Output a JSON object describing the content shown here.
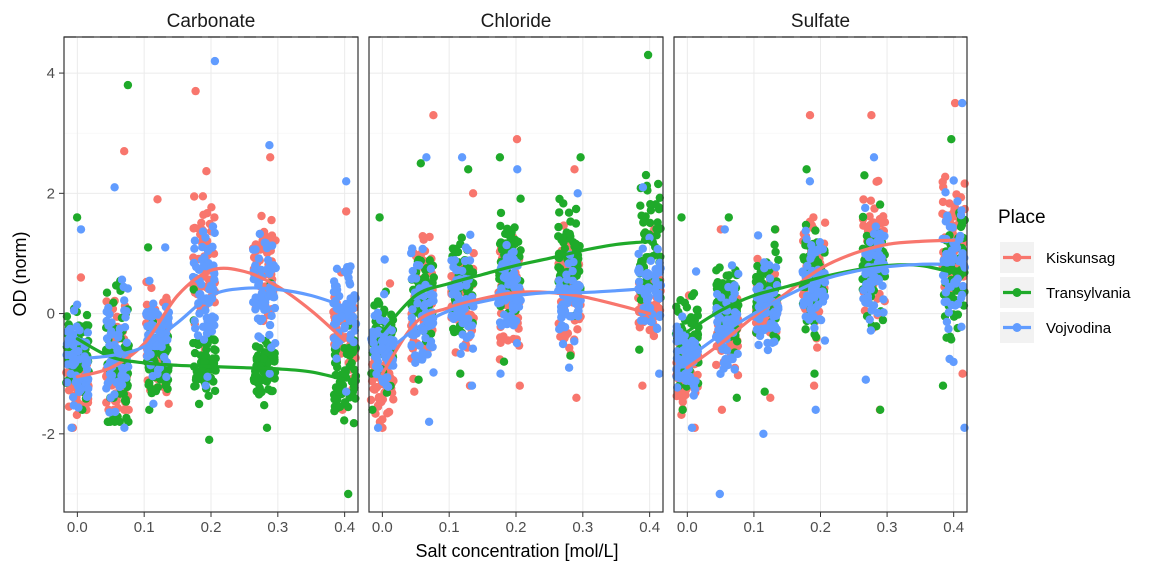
{
  "chart_data": {
    "type": "scatter",
    "subtype": "faceted jittered scatter with loess smoothing lines",
    "xlabel": "Salt concentration [mol/L]",
    "ylabel": "OD (norm)",
    "xlim": [
      -0.02,
      0.42
    ],
    "ylim": [
      -3.3,
      4.6
    ],
    "x_ticks": [
      0.0,
      0.1,
      0.2,
      0.3,
      0.4
    ],
    "x_tick_labels": [
      "0.0",
      "0.1",
      "0.2",
      "0.3",
      "0.4"
    ],
    "y_ticks": [
      -2,
      0,
      2,
      4
    ],
    "y_tick_labels": [
      "-2",
      "0",
      "2",
      "4"
    ],
    "concentrations": [
      0.0,
      0.06,
      0.12,
      0.19,
      0.28,
      0.4
    ],
    "grid": true,
    "legend": {
      "title": "Place",
      "position": "right",
      "entries": [
        "Kiskunsag",
        "Transylvania",
        "Vojvodina"
      ]
    },
    "colors": {
      "Kiskunsag": "#F8766D",
      "Transylvania": "#1FAA2A",
      "Vojvodina": "#619CFF"
    },
    "facets": [
      {
        "title": "Carbonate",
        "series": [
          {
            "name": "Kiskunsag",
            "points": [
              {
                "x": 0.0,
                "mean": -1.1,
                "min": -1.9,
                "max": 0.6
              },
              {
                "x": 0.06,
                "mean": -0.8,
                "min": -1.6,
                "max": 2.7
              },
              {
                "x": 0.12,
                "mean": -0.4,
                "min": -1.5,
                "max": 1.9
              },
              {
                "x": 0.19,
                "mean": 0.9,
                "min": -0.6,
                "max": 3.7
              },
              {
                "x": 0.28,
                "mean": 0.8,
                "min": -0.9,
                "max": 2.6
              },
              {
                "x": 0.4,
                "mean": -0.3,
                "min": -1.6,
                "max": 1.7
              }
            ],
            "trend_x": [
              0.0,
              0.05,
              0.1,
              0.15,
              0.2,
              0.25,
              0.3,
              0.35,
              0.4
            ],
            "trend_y": [
              -1.05,
              -0.9,
              -0.5,
              0.3,
              0.72,
              0.7,
              0.45,
              0.05,
              -0.45
            ]
          },
          {
            "name": "Transylvania",
            "points": [
              {
                "x": 0.0,
                "mean": -0.6,
                "min": -1.6,
                "max": 1.6
              },
              {
                "x": 0.06,
                "mean": -0.9,
                "min": -1.8,
                "max": 3.8
              },
              {
                "x": 0.12,
                "mean": -0.9,
                "min": -1.6,
                "max": 1.1
              },
              {
                "x": 0.19,
                "mean": -0.9,
                "min": -2.1,
                "max": 0.4
              },
              {
                "x": 0.28,
                "mean": -0.9,
                "min": -1.9,
                "max": 0.5
              },
              {
                "x": 0.4,
                "mean": -1.1,
                "min": -3.0,
                "max": -0.2
              }
            ],
            "trend_x": [
              0.0,
              0.05,
              0.1,
              0.15,
              0.2,
              0.25,
              0.3,
              0.35,
              0.4
            ],
            "trend_y": [
              -0.42,
              -0.72,
              -0.82,
              -0.86,
              -0.88,
              -0.9,
              -0.92,
              -0.97,
              -1.1
            ]
          },
          {
            "name": "Vojvodina",
            "points": [
              {
                "x": 0.0,
                "mean": -0.8,
                "min": -1.9,
                "max": 1.4
              },
              {
                "x": 0.06,
                "mean": -0.6,
                "min": -1.9,
                "max": 2.1
              },
              {
                "x": 0.12,
                "mean": -0.3,
                "min": -1.5,
                "max": 1.1
              },
              {
                "x": 0.19,
                "mean": 0.5,
                "min": -1.2,
                "max": 4.2
              },
              {
                "x": 0.28,
                "mean": 0.4,
                "min": -1.0,
                "max": 2.8
              },
              {
                "x": 0.4,
                "mean": 0.1,
                "min": -1.3,
                "max": 2.2
              }
            ],
            "trend_x": [
              0.0,
              0.05,
              0.1,
              0.15,
              0.2,
              0.25,
              0.3,
              0.35,
              0.4
            ],
            "trend_y": [
              -0.75,
              -0.7,
              -0.55,
              -0.15,
              0.3,
              0.42,
              0.4,
              0.3,
              0.12
            ]
          }
        ]
      },
      {
        "title": "Chloride",
        "series": [
          {
            "name": "Kiskunsag",
            "points": [
              {
                "x": 0.0,
                "mean": -1.1,
                "min": -1.9,
                "max": 0.5
              },
              {
                "x": 0.06,
                "mean": 0.2,
                "min": -1.3,
                "max": 3.3
              },
              {
                "x": 0.12,
                "mean": 0.3,
                "min": -1.2,
                "max": 2.0
              },
              {
                "x": 0.19,
                "mean": 0.3,
                "min": -1.2,
                "max": 2.9
              },
              {
                "x": 0.28,
                "mean": 0.4,
                "min": -1.4,
                "max": 2.4
              },
              {
                "x": 0.4,
                "mean": 0.2,
                "min": -1.2,
                "max": 1.4
              }
            ],
            "trend_x": [
              0.0,
              0.05,
              0.1,
              0.15,
              0.2,
              0.25,
              0.3,
              0.35,
              0.4
            ],
            "trend_y": [
              -1.0,
              -0.15,
              0.1,
              0.25,
              0.35,
              0.35,
              0.28,
              0.15,
              0.0
            ]
          },
          {
            "name": "Transylvania",
            "points": [
              {
                "x": 0.0,
                "mean": -0.4,
                "min": -1.6,
                "max": 1.6
              },
              {
                "x": 0.06,
                "mean": 0.2,
                "min": -1.1,
                "max": 2.5
              },
              {
                "x": 0.12,
                "mean": 0.4,
                "min": -1.0,
                "max": 2.4
              },
              {
                "x": 0.19,
                "mean": 0.8,
                "min": -0.8,
                "max": 2.6
              },
              {
                "x": 0.28,
                "mean": 1.0,
                "min": -0.7,
                "max": 2.6
              },
              {
                "x": 0.4,
                "mean": 1.2,
                "min": -0.6,
                "max": 4.3
              }
            ],
            "trend_x": [
              0.0,
              0.05,
              0.1,
              0.15,
              0.2,
              0.25,
              0.3,
              0.35,
              0.4
            ],
            "trend_y": [
              -0.3,
              0.3,
              0.5,
              0.65,
              0.8,
              0.92,
              1.05,
              1.15,
              1.2
            ]
          },
          {
            "name": "Vojvodina",
            "points": [
              {
                "x": 0.0,
                "mean": -0.6,
                "min": -1.9,
                "max": 0.9
              },
              {
                "x": 0.06,
                "mean": 0.0,
                "min": -1.8,
                "max": 2.6
              },
              {
                "x": 0.12,
                "mean": 0.3,
                "min": -1.2,
                "max": 2.6
              },
              {
                "x": 0.19,
                "mean": 0.4,
                "min": -1.0,
                "max": 2.4
              },
              {
                "x": 0.28,
                "mean": 0.3,
                "min": -0.9,
                "max": 2.0
              },
              {
                "x": 0.4,
                "mean": 0.4,
                "min": -1.0,
                "max": 2.1
              }
            ],
            "trend_x": [
              0.0,
              0.05,
              0.1,
              0.15,
              0.2,
              0.25,
              0.3,
              0.35,
              0.4
            ],
            "trend_y": [
              -0.7,
              -0.25,
              0.05,
              0.2,
              0.3,
              0.35,
              0.35,
              0.38,
              0.42
            ]
          }
        ]
      },
      {
        "title": "Sulfate",
        "series": [
          {
            "name": "Kiskunsag",
            "points": [
              {
                "x": 0.0,
                "mean": -1.0,
                "min": -1.9,
                "max": 0.3
              },
              {
                "x": 0.06,
                "mean": -0.3,
                "min": -1.6,
                "max": 1.4
              },
              {
                "x": 0.12,
                "mean": 0.2,
                "min": -1.4,
                "max": 1.4
              },
              {
                "x": 0.19,
                "mean": 0.7,
                "min": -1.2,
                "max": 3.3
              },
              {
                "x": 0.28,
                "mean": 1.1,
                "min": -1.6,
                "max": 3.3
              },
              {
                "x": 0.4,
                "mean": 1.2,
                "min": -1.0,
                "max": 3.5
              }
            ],
            "trend_x": [
              0.0,
              0.05,
              0.1,
              0.15,
              0.2,
              0.25,
              0.3,
              0.35,
              0.4
            ],
            "trend_y": [
              -0.9,
              -0.5,
              -0.05,
              0.35,
              0.75,
              1.0,
              1.15,
              1.2,
              1.22
            ]
          },
          {
            "name": "Transylvania",
            "points": [
              {
                "x": 0.0,
                "mean": -0.4,
                "min": -1.6,
                "max": 1.6
              },
              {
                "x": 0.06,
                "mean": 0.1,
                "min": -1.4,
                "max": 1.6
              },
              {
                "x": 0.12,
                "mean": 0.3,
                "min": -1.3,
                "max": 1.4
              },
              {
                "x": 0.19,
                "mean": 0.6,
                "min": -1.0,
                "max": 2.4
              },
              {
                "x": 0.28,
                "mean": 0.8,
                "min": -1.6,
                "max": 2.3
              },
              {
                "x": 0.4,
                "mean": 0.7,
                "min": -1.2,
                "max": 2.9
              }
            ],
            "trend_x": [
              0.0,
              0.05,
              0.1,
              0.15,
              0.2,
              0.25,
              0.3,
              0.35,
              0.4
            ],
            "trend_y": [
              -0.3,
              0.05,
              0.3,
              0.45,
              0.6,
              0.72,
              0.8,
              0.8,
              0.68
            ]
          },
          {
            "name": "Vojvodina",
            "points": [
              {
                "x": 0.0,
                "mean": -0.7,
                "min": -1.9,
                "max": 0.7
              },
              {
                "x": 0.06,
                "mean": -0.2,
                "min": -3.0,
                "max": 1.4
              },
              {
                "x": 0.12,
                "mean": 0.1,
                "min": -2.0,
                "max": 1.3
              },
              {
                "x": 0.19,
                "mean": 0.5,
                "min": -1.6,
                "max": 2.2
              },
              {
                "x": 0.28,
                "mean": 0.7,
                "min": -1.1,
                "max": 2.6
              },
              {
                "x": 0.4,
                "mean": 0.8,
                "min": -1.9,
                "max": 3.5
              }
            ],
            "trend_x": [
              0.0,
              0.05,
              0.1,
              0.15,
              0.2,
              0.25,
              0.3,
              0.35,
              0.4
            ],
            "trend_y": [
              -0.75,
              -0.35,
              0.0,
              0.3,
              0.55,
              0.7,
              0.78,
              0.82,
              0.82
            ]
          }
        ]
      }
    ]
  }
}
